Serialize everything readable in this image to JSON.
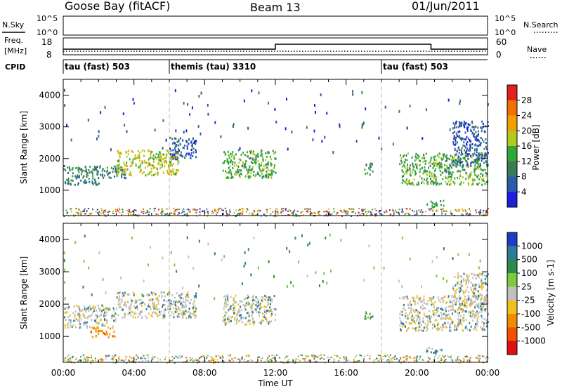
{
  "header": {
    "station": "Goose Bay (fitACF)",
    "beam": "Beam 13",
    "date": "01/Jun/2011"
  },
  "status_panels": {
    "nsky_label": "N.Sky",
    "nsearch_label": "N.Search",
    "nsky_ticks": [
      "10^5",
      "10^0"
    ],
    "nsearch_ticks": [
      "10^5",
      "10^0"
    ],
    "freq_label_line1": "Freq.",
    "freq_label_line2": "[MHz]",
    "freq_ticks": [
      "18",
      "8"
    ],
    "nave_label": "Nave",
    "nave_ticks": [
      "60",
      "0"
    ],
    "cpid_label": "CPID",
    "cpid_segments": [
      {
        "name": "tau (fast) 503",
        "start_h": 0,
        "end_h": 6
      },
      {
        "name": "themis (tau) 3310",
        "start_h": 6,
        "end_h": 18
      },
      {
        "name": "tau (fast) 503",
        "start_h": 18,
        "end_h": 24
      }
    ]
  },
  "axes": {
    "x_ticks": [
      "00:00",
      "04:00",
      "08:00",
      "12:00",
      "16:00",
      "20:00",
      "00:00"
    ],
    "x_label": "Time UT",
    "y_ticks": [
      "1000",
      "2000",
      "3000",
      "4000"
    ],
    "y_label": "Slant Range [km]"
  },
  "power_colorbar": {
    "label": "Power [dB]",
    "ticks": [
      "4",
      "8",
      "12",
      "16",
      "20",
      "24",
      "28"
    ],
    "colors": [
      "#1e1edc",
      "#2a5aa8",
      "#3c7a5a",
      "#2fa83a",
      "#b4c81e",
      "#f0a000",
      "#f07000",
      "#e02020"
    ]
  },
  "velocity_colorbar": {
    "label": "Velocity [m s-1]",
    "ticks": [
      "1000",
      "500",
      "100",
      "25",
      "-25",
      "-100",
      "-500",
      "-1000"
    ],
    "colors": [
      "#1e3cc8",
      "#2e7a9a",
      "#2e8a4a",
      "#7acc3c",
      "#c0c0c0",
      "#f0c020",
      "#f08c00",
      "#f05000",
      "#e01010"
    ]
  },
  "chart_data": [
    {
      "type": "heatmap",
      "title": "Power",
      "xlabel": "Time UT",
      "ylabel": "Slant Range [km]",
      "xlim": [
        0,
        24
      ],
      "ylim": [
        200,
        4500
      ],
      "regions": [
        {
          "t0": 0.0,
          "t1": 2.0,
          "r0": 1200,
          "r1": 1800,
          "level": 2
        },
        {
          "t0": 2.0,
          "t1": 3.5,
          "r0": 1400,
          "r1": 1800,
          "level": 2
        },
        {
          "t0": 3.0,
          "t1": 6.5,
          "r0": 1500,
          "r1": 2300,
          "level": 4
        },
        {
          "t0": 6.0,
          "t1": 7.5,
          "r0": 2000,
          "r1": 2700,
          "level": 1
        },
        {
          "t0": 9.0,
          "t1": 12.0,
          "r0": 1400,
          "r1": 2300,
          "level": 3
        },
        {
          "t0": 17.0,
          "t1": 17.5,
          "r0": 1500,
          "r1": 1900,
          "level": 2
        },
        {
          "t0": 19.0,
          "t1": 24.0,
          "r0": 1200,
          "r1": 2200,
          "level": 3
        },
        {
          "t0": 22.0,
          "t1": 24.0,
          "r0": 1800,
          "r1": 3200,
          "level": 1
        },
        {
          "t0": 20.5,
          "t1": 21.5,
          "r0": 500,
          "r1": 700,
          "level": 3
        }
      ]
    },
    {
      "type": "heatmap",
      "title": "Velocity",
      "xlabel": "Time UT",
      "ylabel": "Slant Range [km]",
      "xlim": [
        0,
        24
      ],
      "ylim": [
        200,
        4500
      ],
      "regions": [
        {
          "t0": 0.0,
          "t1": 3.0,
          "r0": 1300,
          "r1": 2000,
          "level": 4
        },
        {
          "t0": 1.5,
          "t1": 3.0,
          "r0": 1000,
          "r1": 1300,
          "level": 6
        },
        {
          "t0": 3.0,
          "t1": 7.5,
          "r0": 1600,
          "r1": 2400,
          "level": 4
        },
        {
          "t0": 9.0,
          "t1": 12.0,
          "r0": 1400,
          "r1": 2300,
          "level": 4
        },
        {
          "t0": 17.0,
          "t1": 17.5,
          "r0": 1500,
          "r1": 1800,
          "level": 2
        },
        {
          "t0": 19.0,
          "t1": 24.0,
          "r0": 1200,
          "r1": 2300,
          "level": 4
        },
        {
          "t0": 22.0,
          "t1": 24.0,
          "r0": 2000,
          "r1": 3000,
          "level": 4
        },
        {
          "t0": 20.5,
          "t1": 21.5,
          "r0": 500,
          "r1": 700,
          "level": 3
        }
      ]
    }
  ]
}
